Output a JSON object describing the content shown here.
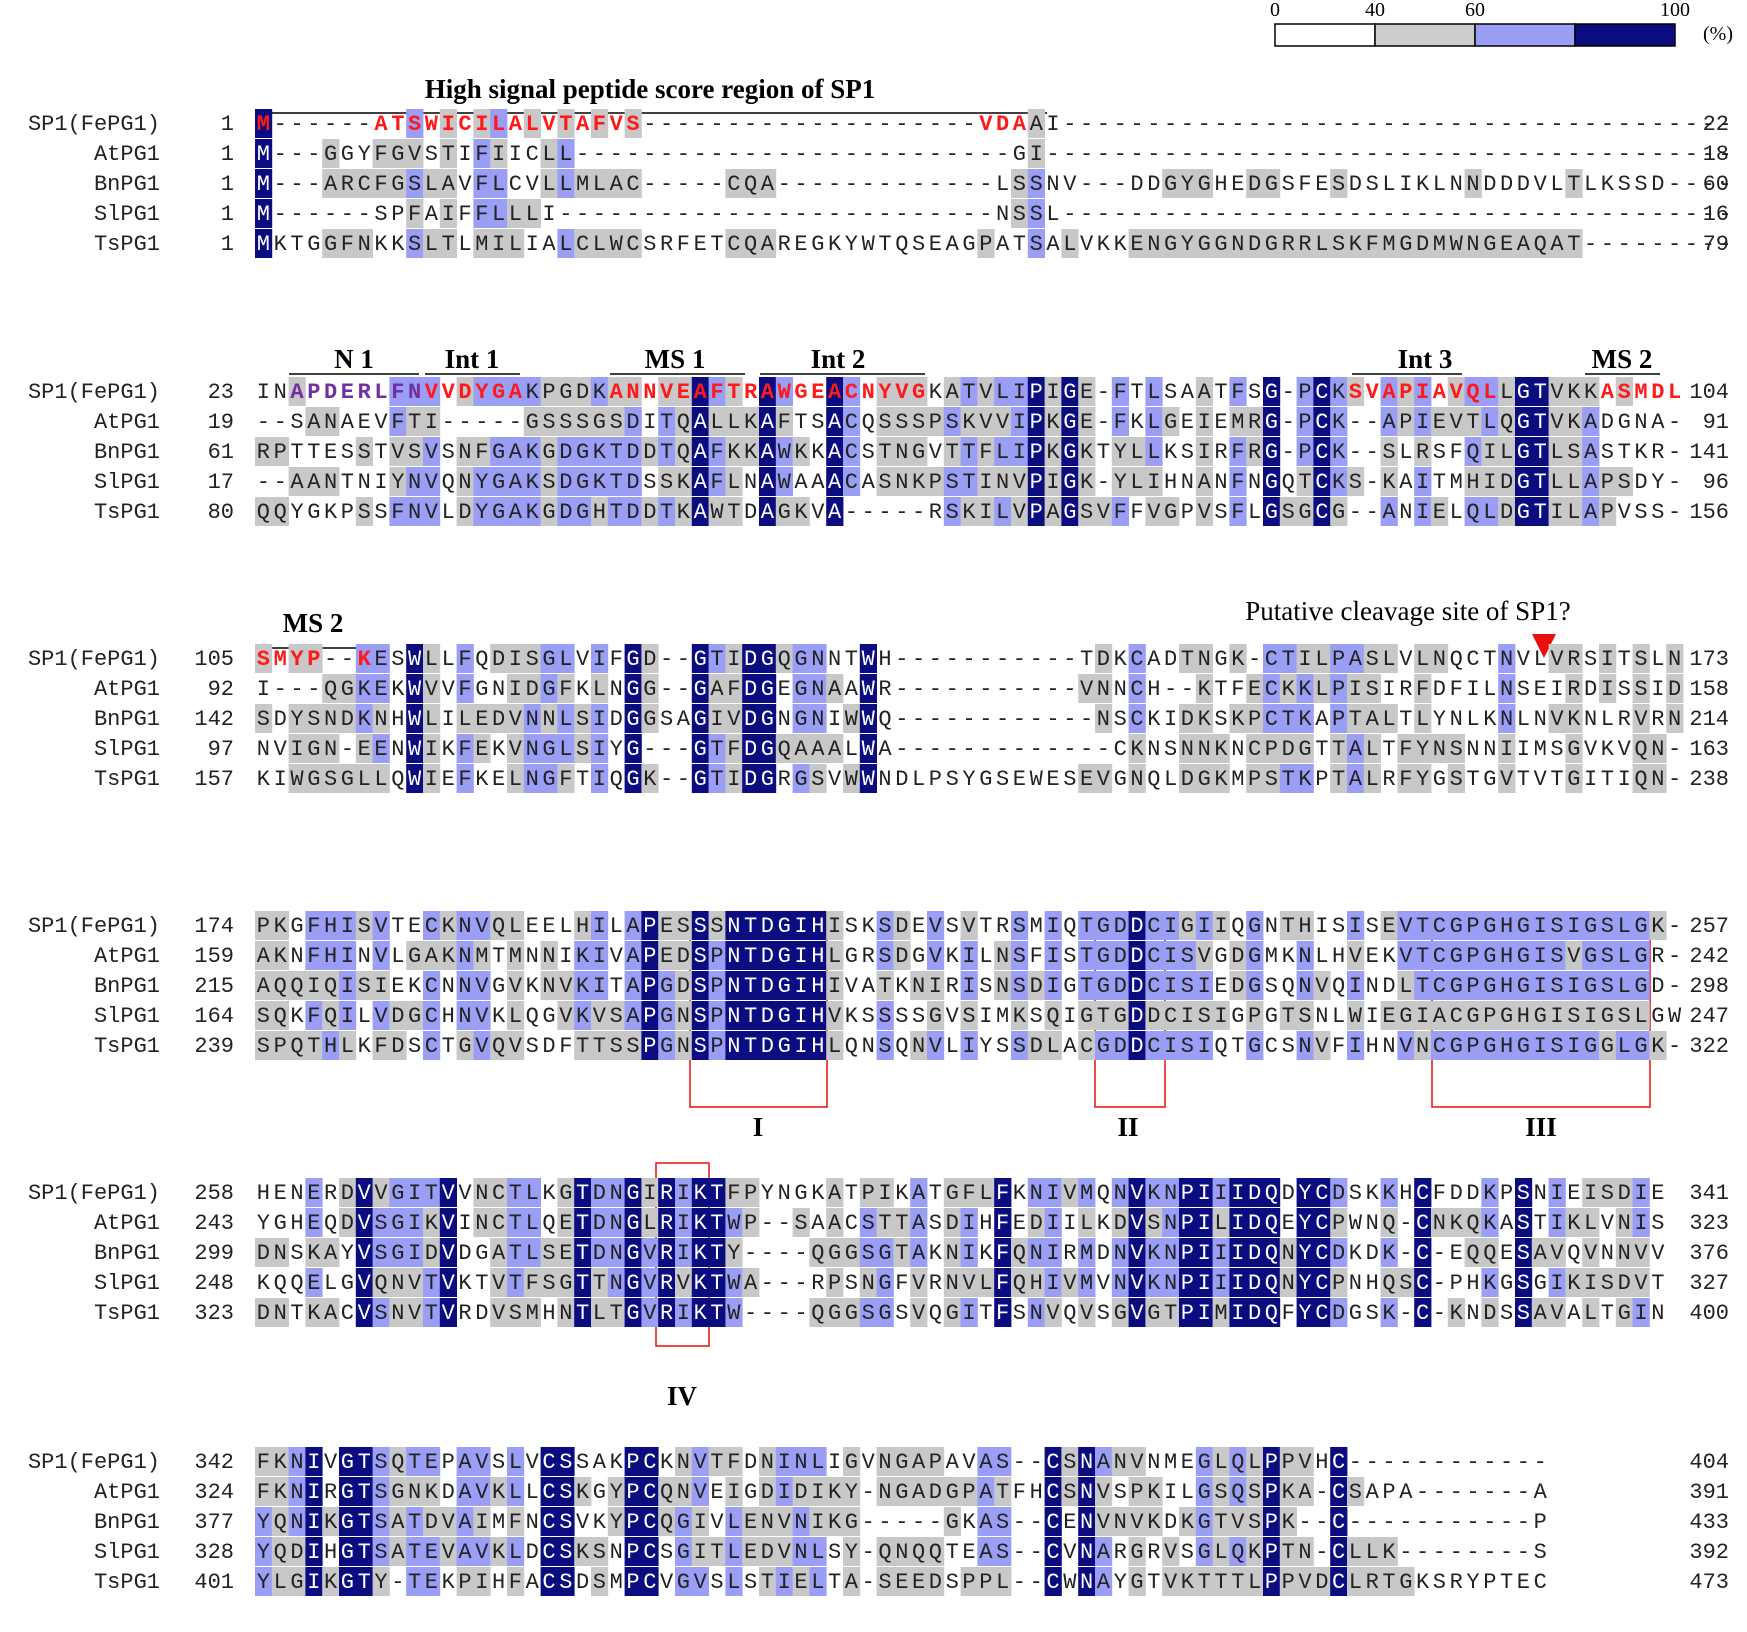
{
  "legend": {
    "ticks": [
      "0",
      "40",
      "60",
      "100"
    ],
    "unit": "(%)",
    "colors": [
      "#ffffff",
      "#cccccc",
      "#9b9ef5",
      "#0b0c80"
    ]
  },
  "colors": {
    "dark": "#0b0c80",
    "light": "#9b9ef5",
    "gray": "#c8c8c8",
    "red": "#ff1a1a",
    "purple": "#7030a0",
    "annot_red": "#e8100e"
  },
  "blocks": [
    {
      "rows": [
        {
          "name": "SP1(FePG1)",
          "start": "1",
          "end": "22",
          "seq": "M------ATSWICILALVTAFVS--------------------VDAAI----------------------------------------"
        },
        {
          "name": "AtPG1",
          "start": "1",
          "end": "18",
          "seq": "M---GGYFGVSTIFIICLL--------------------------GI----------------------------------------"
        },
        {
          "name": "BnPG1",
          "start": "1",
          "end": "60",
          "seq": "M---ARCFGSLAVFLCVLLMLAC-----CQA-------------LSSNV---DDGYGHEDGSFESDSLIKLNNDDDVLTLKSSD"
        },
        {
          "name": "SlPG1",
          "start": "1",
          "end": "16",
          "seq": "M------SPFAIFFLLLI--------------------------NSSL----------------------------------------"
        },
        {
          "name": "TsPG1",
          "start": "1",
          "end": "79",
          "seq": "MKTGGFNKKSLTLMILIALCLWCSRFETCQAREGKYWTQSEAGPATSALVKKENGYGGNDGRRLSKFMGDMWNGEAQAT-----"
        }
      ],
      "annotations": [
        {
          "label": "High signal peptide score region of SP1"
        }
      ]
    },
    {
      "rows": [
        {
          "name": "SP1(FePG1)",
          "start": "23",
          "end": "104",
          "seq": "INAPDERLFNVVDYGAKPGDKANNVEAFTRAWGEACNYVGKATVLIPIGE-FTLSAATFSG-PCKSVAPIAVQLLGTVKKASMDL"
        },
        {
          "name": "AtPG1",
          "start": "19",
          "end": "91",
          "seq": "--SANAEVFTI-----GSSSGSDITQALLKAFTSACQSSSPSKVVIPKGE-FKLGEIEMRG-PCK--APIEVTLQGTVKADGNA"
        },
        {
          "name": "BnPG1",
          "start": "61",
          "end": "141",
          "seq": "RPTTESSTVSVSNFGAKGDGKTDDTQAFKKAWKKACSTNGVTTFLIPKGKTYLLKSIRFRG-PCK--SLRSFQILGTLSASTKR"
        },
        {
          "name": "SlPG1",
          "start": "17",
          "end": "96",
          "seq": "--AANTNIYNVQNYGAKSDGKTDSSKAFLNAWAAACASNKPSTINVPIGK-YLIHNANFNGQTCKS-KAITMHIDGTLLAPSDY"
        },
        {
          "name": "TsPG1",
          "start": "80",
          "end": "156",
          "seq": "QQYGKPSSFNVLDYGAKGDGHTDDTKAWTDAGKVA-----RSKILVPAGSVFFVGPVSFLGSGCG--ANIELQLDGTILAPVSS"
        }
      ],
      "annotations": [
        {
          "label": "N 1"
        },
        {
          "label": "Int 1"
        },
        {
          "label": "MS 1"
        },
        {
          "label": "Int 2"
        },
        {
          "label": "Int 3"
        },
        {
          "label": "MS 2"
        }
      ]
    },
    {
      "rows": [
        {
          "name": "SP1(FePG1)",
          "start": "105",
          "end": "173",
          "seq": "SMYP--KESWLLFQDISGLVIFGD--GTIDGQGNNTWH-----------TDKCADTNGK-CTILPASLVLNQCTNVLVRSITSLN"
        },
        {
          "name": "AtPG1",
          "start": "92",
          "end": "158",
          "seq": "I---QGKEKWVVFGNIDGFKLNGG--GAFDGEGNAAWR-----------VNNCH--KTFECKKLPISIRFDFILNSEIRDISSID"
        },
        {
          "name": "BnPG1",
          "start": "142",
          "end": "214",
          "seq": "SDYSNDKNHWLILEDVNNLSIDGGSAGIVDGNGNIWWQ------------NSCKIDKSKPCTKAPTALTLYNLKNLNVKNLRVRN"
        },
        {
          "name": "SlPG1",
          "start": "97",
          "end": "163",
          "seq": "NVIGN-EENWIKFEKVNGLSIYG---GTFDGQAAALWA-------------CKNSNNKNCPDGTTALTFYNSNNIIMSGVKVQN"
        },
        {
          "name": "TsPG1",
          "start": "157",
          "end": "238",
          "seq": "KIWGSGLLQWIEFKELNGFTIQGK--GTIDGRGSVWWNDLPSYGSEWESEVGNQLDGKMPSTKPTALRFYGSTGVTVTGITIQN"
        }
      ],
      "annotations": [
        {
          "label": "MS 2"
        },
        {
          "label": "Putative cleavage site of SP1?"
        }
      ]
    },
    {
      "rows": [
        {
          "name": "SP1(FePG1)",
          "start": "174",
          "end": "257",
          "seq": "PKGFHISVTECKNVQLEELHILAPESSSNTDGIHISKSDEVSVTRSMIQTGDDCIGIIQGNTHISISEVTCGPGHGISIGSLGK"
        },
        {
          "name": "AtPG1",
          "start": "159",
          "end": "242",
          "seq": "AKNFHINVLGAKNMTMNNIKIVAPEDSPNTDGIHLGRSDGVKILNSFISTGDDCISVGDGMKNLHVEKVTCGPGHGISVGSLGR"
        },
        {
          "name": "BnPG1",
          "start": "215",
          "end": "298",
          "seq": "AQQIQISIEKCNNVGVKNVKITAPGDSPNTDGIHIVATKNIRISNSDIGTGDDCISIEDGSQNVQINDLTCGPGHGISIGSLGD"
        },
        {
          "name": "SlPG1",
          "start": "164",
          "end": "247",
          "seq": "SQKFQILVDGCHNVKLQGVKVSAPGNSPNTDGIHVKSSSSGVSIMKSQIGTGDDCISIGPGTSNLWIEGIACGPGHGISIGSLGW"
        },
        {
          "name": "TsPG1",
          "start": "239",
          "end": "322",
          "seq": "SPQTHLKFDSCTGVQVSDFTTSSPGNSPNTDGIHLQNSQNVLIYSSDLACGDDCISIQTGCSNVFIHNVNCGPGHGISIGGLGK"
        }
      ],
      "annotations": [
        {
          "label": "I"
        },
        {
          "label": "II"
        },
        {
          "label": "III"
        }
      ]
    },
    {
      "rows": [
        {
          "name": "SP1(FePG1)",
          "start": "258",
          "end": "341",
          "seq": "HENERDVVGITVVNCTLKGTDNGIRIKTFPYNGKATPIKATGFLFKNIVMQNVKNPIIIDQDYCDSKKHCFDDKPSNIEISDIE"
        },
        {
          "name": "AtPG1",
          "start": "243",
          "end": "323",
          "seq": "YGHEQDVSGIKVINCTLQETDNGLRIKTWP--SAACSTTASDIHFEDIILKDVSNPILIDQEYCPWNQ-CNKQKASTIKLVNIS"
        },
        {
          "name": "BnPG1",
          "start": "299",
          "end": "376",
          "seq": "DNSKAYVSGIDVDGATLSETDNGVRIKTY----QGGSGTAKNIKFQNIRMDNVKNPIIIDQNYCDKDK-C-EQQESAVQVNNVV"
        },
        {
          "name": "SlPG1",
          "start": "248",
          "end": "327",
          "seq": "KQQELGVQNVTVKTVTFSGTTNGVRVKTWA---RPSNGFVRNVLFQHIVMVNVKNPIIIDQNYCPNHQSC-PHKGSGIKISDVT"
        },
        {
          "name": "TsPG1",
          "start": "323",
          "end": "400",
          "seq": "DNTKACVSNVTVRDVSMHNTLTGVRIKTW----QGGSGSVQGITFSNVQVSGVGTPIMIDQFYCDGSK-C-KNDSSAVALTGIN"
        }
      ],
      "annotations": [
        {
          "label": "IV"
        }
      ]
    },
    {
      "rows": [
        {
          "name": "SP1(FePG1)",
          "start": "342",
          "end": "404",
          "seq": "FKNIVGTSQTEPAVSLVCSSAKPCKNVTFDNINLIGVNGAPAVAS--CSNANVNMEGLQLPPVHC-----------"
        },
        {
          "name": "AtPG1",
          "start": "324",
          "end": "391",
          "seq": "FKNIRGTSGNKDAVKLLCSKGYPCQNVEIGDIDIKY-NGADGPATFHCSNVSPKILGSQSPKA-CSAPA-------A"
        },
        {
          "name": "BnPG1",
          "start": "377",
          "end": "433",
          "seq": "YQNIKGTSATDVAIMFNCSVKYPCQGIVLENVNIKG-----GKAS--CENVNVKDKGTVSPK--C-----------P"
        },
        {
          "name": "SlPG1",
          "start": "328",
          "end": "392",
          "seq": "YQDIHGTSATEVAVKLDCSKSNPCSGITLEDVNLSY-QNQQTEAS--CVNARGRVSGLQKPTN-CLLK--------S"
        },
        {
          "name": "TsPG1",
          "start": "401",
          "end": "473",
          "seq": "YLGIKGTY-TEKPIHFACSDSMPCVGVSLSTIELTA-SEEDSPPL--CWNAYGTVKTTTLPPVDCLRTGKSRYPTEC"
        }
      ],
      "annotations": []
    }
  ]
}
